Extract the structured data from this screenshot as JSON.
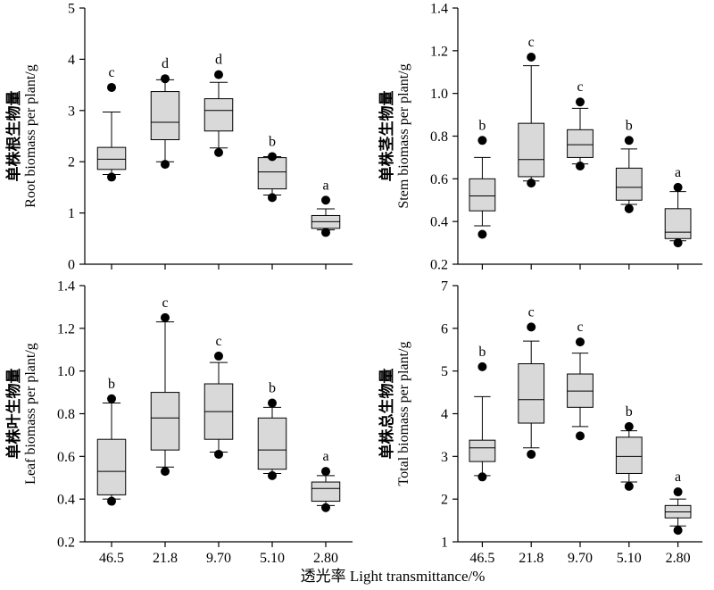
{
  "colors": {
    "box_fill": "#d9d9d9",
    "stroke": "#000000",
    "outlier": "#000000",
    "background": "#ffffff"
  },
  "x_categories": [
    "46.5",
    "21.8",
    "9.70",
    "5.10",
    "2.80"
  ],
  "xlabel_shared": "透光率 Light transmittance/%",
  "chart_data": [
    {
      "type": "box",
      "panel": "top-left",
      "ylabel_cn": "单株根生物量",
      "ylabel_en": "Root biomass per plant/g",
      "ylim": [
        0,
        5
      ],
      "yticks": [
        0,
        1,
        2,
        3,
        4,
        5
      ],
      "ytick_labels": [
        "0",
        "1",
        "2",
        "3",
        "4",
        "5"
      ],
      "categories": [
        "46.5",
        "21.8",
        "9.70",
        "5.10",
        "2.80"
      ],
      "boxes": [
        {
          "category": "46.5",
          "whisker_low": 1.75,
          "q1": 1.85,
          "median": 2.05,
          "q3": 2.28,
          "whisker_high": 2.97,
          "outliers": [
            1.7,
            3.45
          ],
          "letter": "c"
        },
        {
          "category": "21.8",
          "whisker_low": 2.0,
          "q1": 2.43,
          "median": 2.77,
          "q3": 3.37,
          "whisker_high": 3.6,
          "outliers": [
            1.95,
            3.62
          ],
          "letter": "d"
        },
        {
          "category": "9.70",
          "whisker_low": 2.27,
          "q1": 2.6,
          "median": 3.0,
          "q3": 3.23,
          "whisker_high": 3.55,
          "outliers": [
            2.18,
            3.7
          ],
          "letter": "d"
        },
        {
          "category": "5.10",
          "whisker_low": 1.35,
          "q1": 1.47,
          "median": 1.8,
          "q3": 2.08,
          "whisker_high": 2.1,
          "outliers": [
            1.3,
            2.1
          ],
          "letter": "b"
        },
        {
          "category": "2.80",
          "whisker_low": 0.67,
          "q1": 0.7,
          "median": 0.83,
          "q3": 0.95,
          "whisker_high": 1.08,
          "outliers": [
            0.62,
            1.25
          ],
          "letter": "a"
        }
      ]
    },
    {
      "type": "box",
      "panel": "top-right",
      "ylabel_cn": "单株茎生物量",
      "ylabel_en": "Stem biomass per plant/g",
      "ylim": [
        0.2,
        1.4
      ],
      "yticks": [
        0.2,
        0.4,
        0.6,
        0.8,
        1.0,
        1.2,
        1.4
      ],
      "ytick_labels": [
        "0.2",
        "0.4",
        "0.6",
        "0.8",
        "1.0",
        "1.2",
        "1.4"
      ],
      "categories": [
        "46.5",
        "21.8",
        "9.70",
        "5.10",
        "2.80"
      ],
      "boxes": [
        {
          "category": "46.5",
          "whisker_low": 0.38,
          "q1": 0.45,
          "median": 0.52,
          "q3": 0.6,
          "whisker_high": 0.7,
          "outliers": [
            0.34,
            0.78
          ],
          "letter": "b"
        },
        {
          "category": "21.8",
          "whisker_low": 0.59,
          "q1": 0.61,
          "median": 0.69,
          "q3": 0.86,
          "whisker_high": 1.13,
          "outliers": [
            0.58,
            1.17
          ],
          "letter": "c"
        },
        {
          "category": "9.70",
          "whisker_low": 0.67,
          "q1": 0.7,
          "median": 0.76,
          "q3": 0.83,
          "whisker_high": 0.93,
          "outliers": [
            0.66,
            0.96
          ],
          "letter": "c"
        },
        {
          "category": "5.10",
          "whisker_low": 0.48,
          "q1": 0.5,
          "median": 0.56,
          "q3": 0.65,
          "whisker_high": 0.74,
          "outliers": [
            0.46,
            0.78
          ],
          "letter": "b"
        },
        {
          "category": "2.80",
          "whisker_low": 0.31,
          "q1": 0.32,
          "median": 0.35,
          "q3": 0.46,
          "whisker_high": 0.54,
          "outliers": [
            0.3,
            0.56
          ],
          "letter": "a"
        }
      ]
    },
    {
      "type": "box",
      "panel": "bottom-left",
      "ylabel_cn": "单株叶生物量",
      "ylabel_en": "Leaf biomass per plant/g",
      "ylim": [
        0.2,
        1.4
      ],
      "yticks": [
        0.2,
        0.4,
        0.6,
        0.8,
        1.0,
        1.2,
        1.4
      ],
      "ytick_labels": [
        "0.2",
        "0.4",
        "0.6",
        "0.8",
        "1.0",
        "1.2",
        "1.4"
      ],
      "categories": [
        "46.5",
        "21.8",
        "9.70",
        "5.10",
        "2.80"
      ],
      "boxes": [
        {
          "category": "46.5",
          "whisker_low": 0.4,
          "q1": 0.42,
          "median": 0.53,
          "q3": 0.68,
          "whisker_high": 0.85,
          "outliers": [
            0.39,
            0.87
          ],
          "letter": "b"
        },
        {
          "category": "21.8",
          "whisker_low": 0.55,
          "q1": 0.63,
          "median": 0.78,
          "q3": 0.9,
          "whisker_high": 1.23,
          "outliers": [
            0.53,
            1.25
          ],
          "letter": "c"
        },
        {
          "category": "9.70",
          "whisker_low": 0.62,
          "q1": 0.68,
          "median": 0.81,
          "q3": 0.94,
          "whisker_high": 1.04,
          "outliers": [
            0.61,
            1.07
          ],
          "letter": "c"
        },
        {
          "category": "5.10",
          "whisker_low": 0.52,
          "q1": 0.54,
          "median": 0.63,
          "q3": 0.78,
          "whisker_high": 0.83,
          "outliers": [
            0.51,
            0.85
          ],
          "letter": "b"
        },
        {
          "category": "2.80",
          "whisker_low": 0.37,
          "q1": 0.39,
          "median": 0.45,
          "q3": 0.48,
          "whisker_high": 0.51,
          "outliers": [
            0.36,
            0.53
          ],
          "letter": "a"
        }
      ]
    },
    {
      "type": "box",
      "panel": "bottom-right",
      "ylabel_cn": "单株总生物量",
      "ylabel_en": "Total biomass per plant/g",
      "ylim": [
        1,
        7
      ],
      "yticks": [
        1,
        2,
        3,
        4,
        5,
        6,
        7
      ],
      "ytick_labels": [
        "1",
        "2",
        "3",
        "4",
        "5",
        "6",
        "7"
      ],
      "categories": [
        "46.5",
        "21.8",
        "9.70",
        "5.10",
        "2.80"
      ],
      "boxes": [
        {
          "category": "46.5",
          "whisker_low": 2.55,
          "q1": 2.88,
          "median": 3.2,
          "q3": 3.38,
          "whisker_high": 4.4,
          "outliers": [
            2.52,
            5.1
          ],
          "letter": "b"
        },
        {
          "category": "21.8",
          "whisker_low": 3.2,
          "q1": 3.78,
          "median": 4.33,
          "q3": 5.17,
          "whisker_high": 5.7,
          "outliers": [
            3.05,
            6.03
          ],
          "letter": "c"
        },
        {
          "category": "9.70",
          "whisker_low": 3.7,
          "q1": 4.15,
          "median": 4.53,
          "q3": 4.93,
          "whisker_high": 5.42,
          "outliers": [
            3.48,
            5.68
          ],
          "letter": "c"
        },
        {
          "category": "5.10",
          "whisker_low": 2.4,
          "q1": 2.6,
          "median": 3.0,
          "q3": 3.45,
          "whisker_high": 3.6,
          "outliers": [
            2.3,
            3.7
          ],
          "letter": "b"
        },
        {
          "category": "2.80",
          "whisker_low": 1.37,
          "q1": 1.56,
          "median": 1.7,
          "q3": 1.85,
          "whisker_high": 2.0,
          "outliers": [
            1.27,
            2.17
          ],
          "letter": "a"
        }
      ]
    }
  ]
}
